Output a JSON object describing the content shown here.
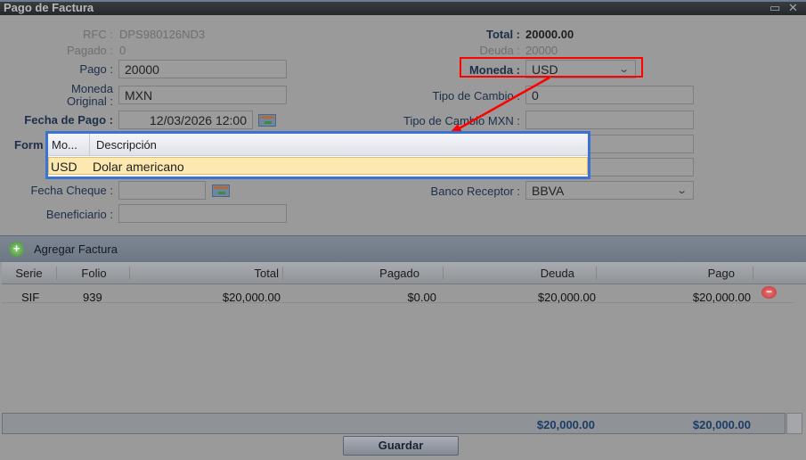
{
  "window": {
    "title": "Pago de Factura"
  },
  "form": {
    "rfc_label": "RFC :",
    "rfc": "DPS980126ND3",
    "pagado_label": "Pagado :",
    "pagado": "0",
    "pago_label": "Pago :",
    "pago": "20000",
    "moneda_original_label": "Moneda Original :",
    "moneda_original": "MXN",
    "fecha_pago_label": "Fecha de Pago :",
    "fecha_pago": "12/03/2026 12:00",
    "forma_label": "Form",
    "fecha_cheque_label": "Fecha Cheque :",
    "fecha_cheque": "",
    "beneficiario_label": "Beneficiario :",
    "beneficiario": "",
    "total_label": "Total :",
    "total": "20000.00",
    "deuda_label": "Deuda :",
    "deuda": "20000",
    "moneda_label": "Moneda :",
    "moneda": "USD",
    "tipo_cambio_label": "Tipo de Cambio :",
    "tipo_cambio": "0",
    "tipo_cambio_mxn_label": "Tipo de Cambio MXN :",
    "tipo_cambio_mxn": "",
    "banco_receptor_label": "Banco Receptor :",
    "banco_receptor": "BBVA"
  },
  "dropdown": {
    "headers": [
      "Mo...",
      "Descripción"
    ],
    "rows": [
      {
        "code": "USD",
        "desc": "Dolar americano"
      }
    ]
  },
  "annotation": {
    "color": "#ff0000"
  },
  "invoices": {
    "add_label": "Agregar Factura",
    "headers": [
      "Serie",
      "Folio",
      "Total",
      "Pagado",
      "Deuda",
      "Pago"
    ],
    "rows": [
      {
        "serie": "SIF",
        "folio": "939",
        "total": "$20,000.00",
        "pagado": "$0.00",
        "deuda": "$20,000.00",
        "pago": "$20,000.00"
      }
    ],
    "footer": {
      "deuda": "$20,000.00",
      "pago": "$20,000.00"
    }
  },
  "save_label": "Guardar"
}
